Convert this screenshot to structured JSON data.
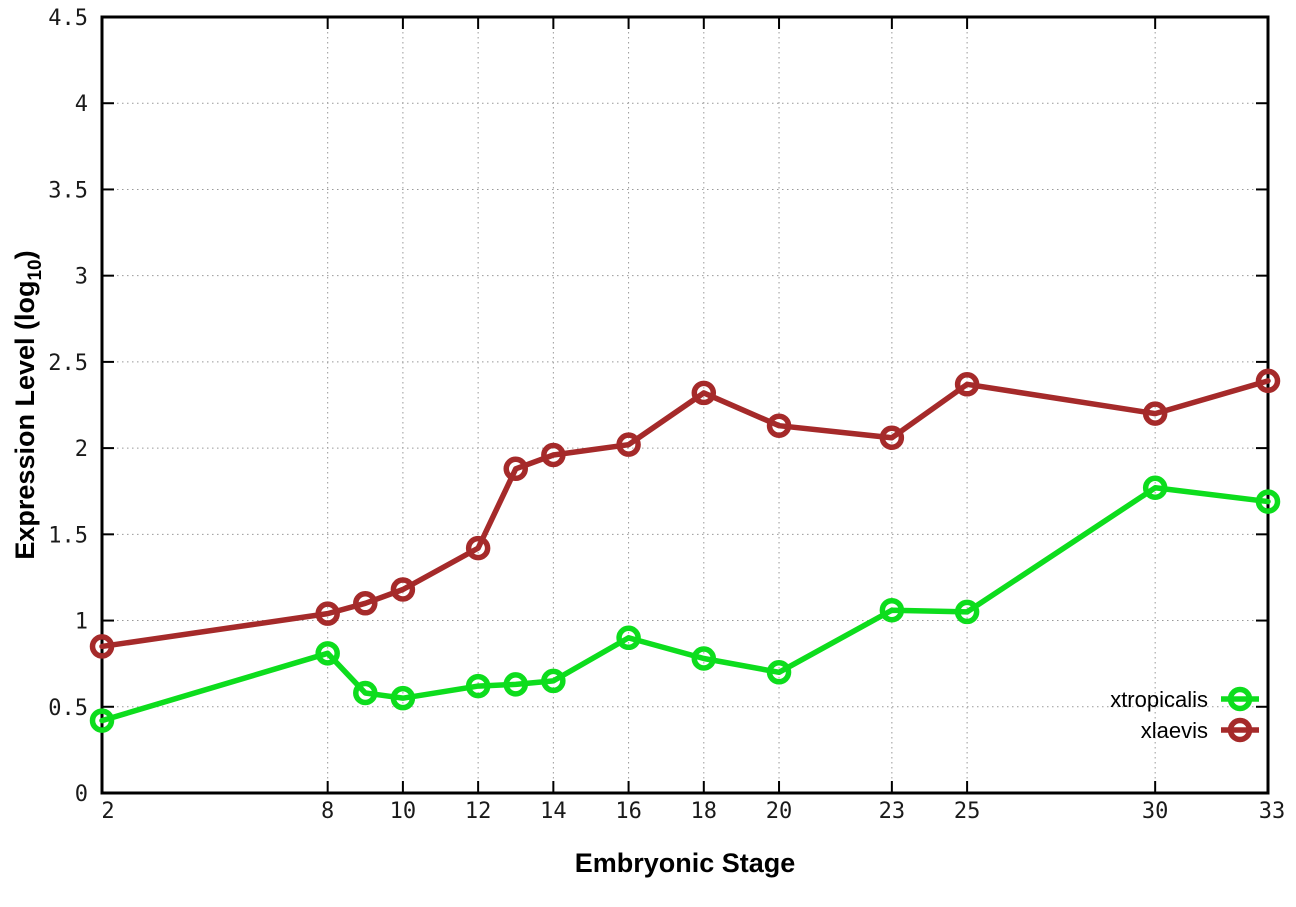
{
  "chart_data": {
    "type": "line",
    "x": [
      2,
      8,
      9,
      10,
      12,
      13,
      14,
      16,
      18,
      20,
      23,
      25,
      30,
      33
    ],
    "series": [
      {
        "name": "xtropicalis",
        "color": "#0ddd1d",
        "values": [
          0.42,
          0.81,
          0.58,
          0.55,
          0.62,
          0.63,
          0.65,
          0.9,
          0.78,
          0.7,
          1.06,
          1.05,
          1.77,
          1.69
        ]
      },
      {
        "name": "xlaevis",
        "color": "#a52a2a",
        "values": [
          0.85,
          1.04,
          1.1,
          1.18,
          1.42,
          1.88,
          1.96,
          2.02,
          2.32,
          2.13,
          2.06,
          2.37,
          2.2,
          2.39
        ]
      }
    ],
    "xlabel": "Embryonic Stage",
    "ylabel": "Expression Level (log10)",
    "ylabel_parts": {
      "main": "Expression Level (log",
      "sub": "10",
      "end": ")"
    },
    "xlim": [
      2,
      33
    ],
    "ylim": [
      0,
      4.5
    ],
    "xticks": [
      2,
      8,
      10,
      12,
      14,
      16,
      18,
      20,
      23,
      25,
      30,
      33
    ],
    "xtick_labels": [
      "2",
      "8",
      "10",
      "12",
      "14",
      "16",
      "18",
      "20",
      "23",
      "25",
      "30",
      "33"
    ],
    "yticks": [
      0,
      0.5,
      1,
      1.5,
      2,
      2.5,
      3,
      3.5,
      4,
      4.5
    ],
    "ytick_labels": [
      "0",
      "0.5",
      "1",
      "1.5",
      "2",
      "2.5",
      "3",
      "3.5",
      "4",
      "4.5"
    ],
    "grid": true,
    "grid_style": "dotted",
    "grid_color": "#999999",
    "axis_color": "#000000",
    "background": "#ffffff",
    "legend_position": "bottom-right",
    "marker": "open-circle"
  }
}
